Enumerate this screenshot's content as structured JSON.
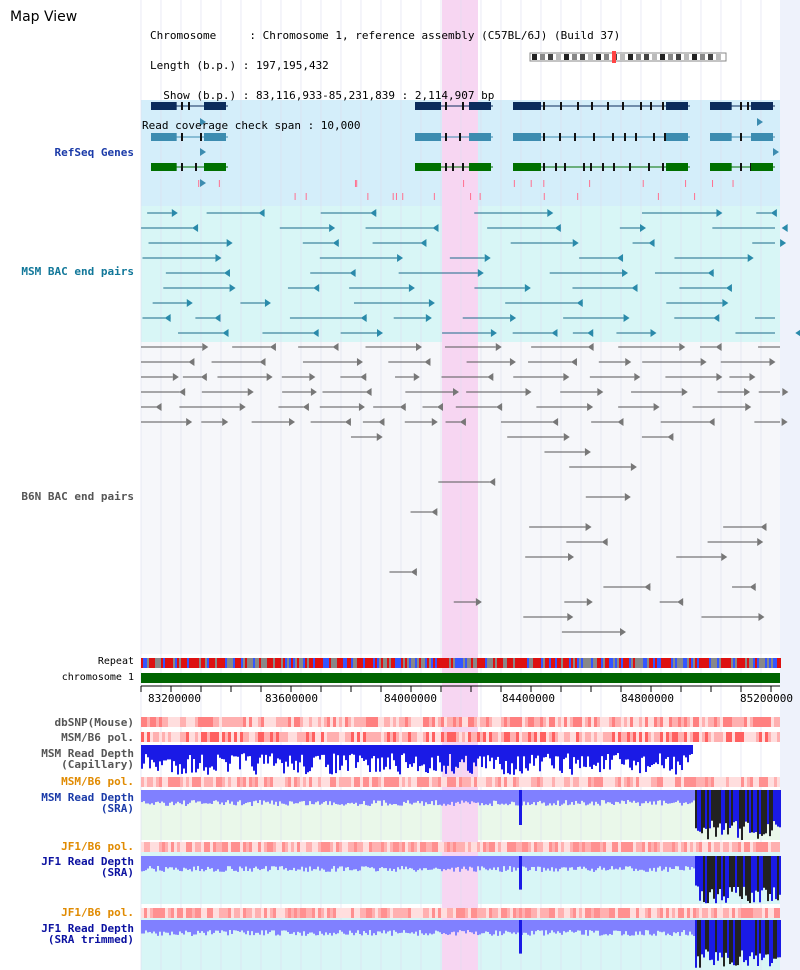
{
  "title": "Map View",
  "header": {
    "chromosome_line": "Chromosome     : Chromosome 1, reference assembly (C57BL/6J) (Build 37)",
    "length_line": "Length (b.p.) : 197,195,432",
    "show_line": "  Show (b.p.) : 83,116,933-85,231,839 : 2,114,907 bp",
    "coverage_line": "Read coverage check span : 10,000"
  },
  "tracks": {
    "refseq": "RefSeq Genes",
    "msm_bac": "MSM BAC end pairs",
    "b6n_bac": "B6N BAC end pairs",
    "repeat": "Repeat",
    "chromosome": "chromosome 1",
    "dbsnp": "dbSNP(Mouse)",
    "msm_b6_pol_1": "MSM/B6 pol.",
    "msm_read_depth_cap": "MSM Read Depth\n(Capillary)",
    "msm_b6_pol_2": "MSM/B6 pol.",
    "msm_read_depth_sra": "MSM Read Depth\n(SRA)",
    "jf1_b6_pol_1": "JF1/B6 pol.",
    "jf1_read_depth_sra": "JF1 Read Depth\n(SRA)",
    "jf1_b6_pol_2": "JF1/B6 pol.",
    "jf1_read_depth_trim": "JF1 Read Depth\n(SRA trimmed)"
  },
  "axis": {
    "ticks": [
      "83200000",
      "83600000",
      "84000000",
      "84400000",
      "84800000",
      "85200000"
    ]
  },
  "colors": {
    "refseq_bg": "#d4eefa",
    "msm_bg": "#d8f6f6",
    "highlight": "#f7d6f2",
    "gene_dark": "#0c2c5c",
    "gene_teal": "#3c8cb0",
    "gene_green": "#007000",
    "chromosome": "#006400",
    "depth_blue": "#1a1ae6"
  }
}
